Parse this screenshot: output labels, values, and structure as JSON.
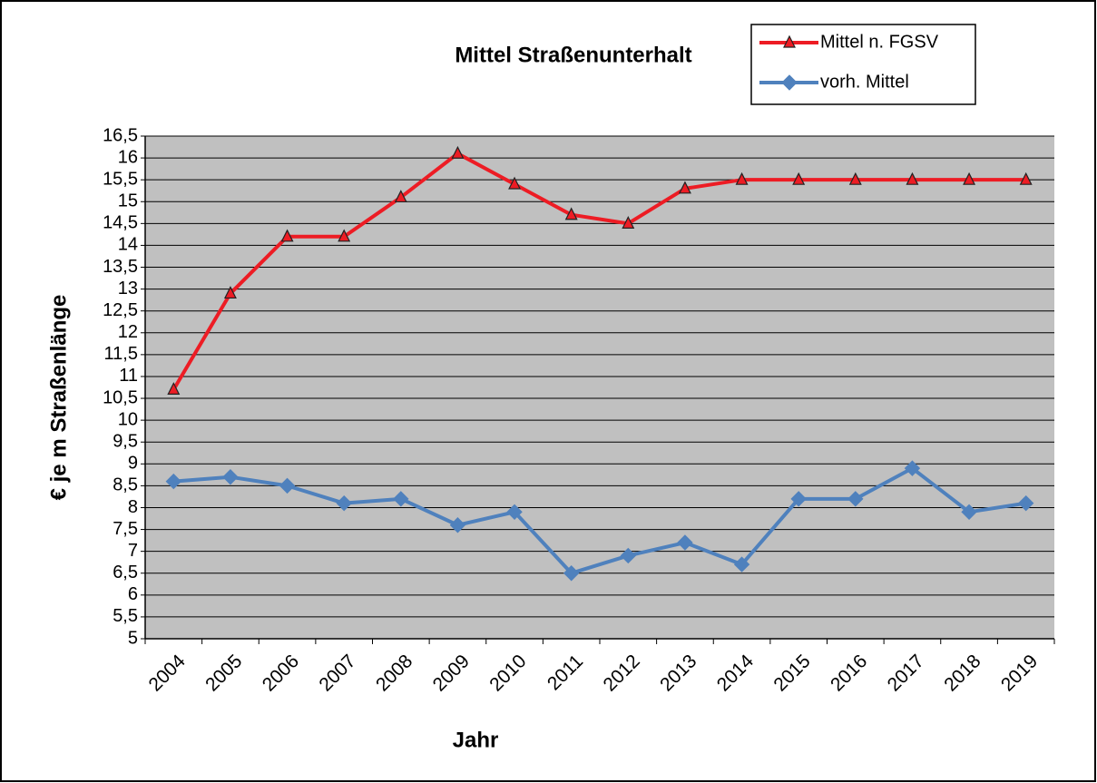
{
  "chart_data": {
    "type": "line",
    "title": "Mittel Straßenunterhalt",
    "x_label": "Jahr",
    "y_label": "€ je m Straßenlänge",
    "categories": [
      "2004",
      "2005",
      "2006",
      "2007",
      "2008",
      "2009",
      "2010",
      "2011",
      "2012",
      "2013",
      "2014",
      "2015",
      "2016",
      "2017",
      "2018",
      "2019"
    ],
    "series": [
      {
        "name": "Mittel n. FGSV",
        "color": "#ed1c24",
        "marker": "triangle",
        "values": [
          10.7,
          12.9,
          14.2,
          14.2,
          15.1,
          16.1,
          15.4,
          14.7,
          14.5,
          15.3,
          15.5,
          15.5,
          15.5,
          15.5,
          15.5,
          15.5
        ]
      },
      {
        "name": "vorh. Mittel",
        "color": "#4f81bd",
        "marker": "diamond",
        "values": [
          8.6,
          8.7,
          8.5,
          8.1,
          8.2,
          7.6,
          7.9,
          6.5,
          6.9,
          7.2,
          6.7,
          8.2,
          8.2,
          8.9,
          7.9,
          8.1
        ]
      }
    ],
    "ylim": [
      5,
      16.5
    ],
    "yticks": [
      5,
      {
        "value": 5.5,
        "label": "5,5"
      },
      6,
      {
        "value": 6.5,
        "label": "6,5"
      },
      7,
      {
        "value": 7.5,
        "label": "7,5"
      },
      8,
      {
        "value": 8.5,
        "label": "8,5"
      },
      9,
      {
        "value": 9.5,
        "label": "9,5"
      },
      10,
      {
        "value": 10.5,
        "label": "10,5"
      },
      11,
      {
        "value": 11.5,
        "label": "11,5"
      },
      12,
      {
        "value": 12.5,
        "label": "12,5"
      },
      13,
      {
        "value": 13.5,
        "label": "13,5"
      },
      14,
      {
        "value": 14.5,
        "label": "14,5"
      },
      15,
      {
        "value": 15.5,
        "label": "15,5"
      },
      16,
      {
        "value": 16.5,
        "label": "16,5"
      }
    ],
    "grid": true,
    "legend": "top-right"
  }
}
